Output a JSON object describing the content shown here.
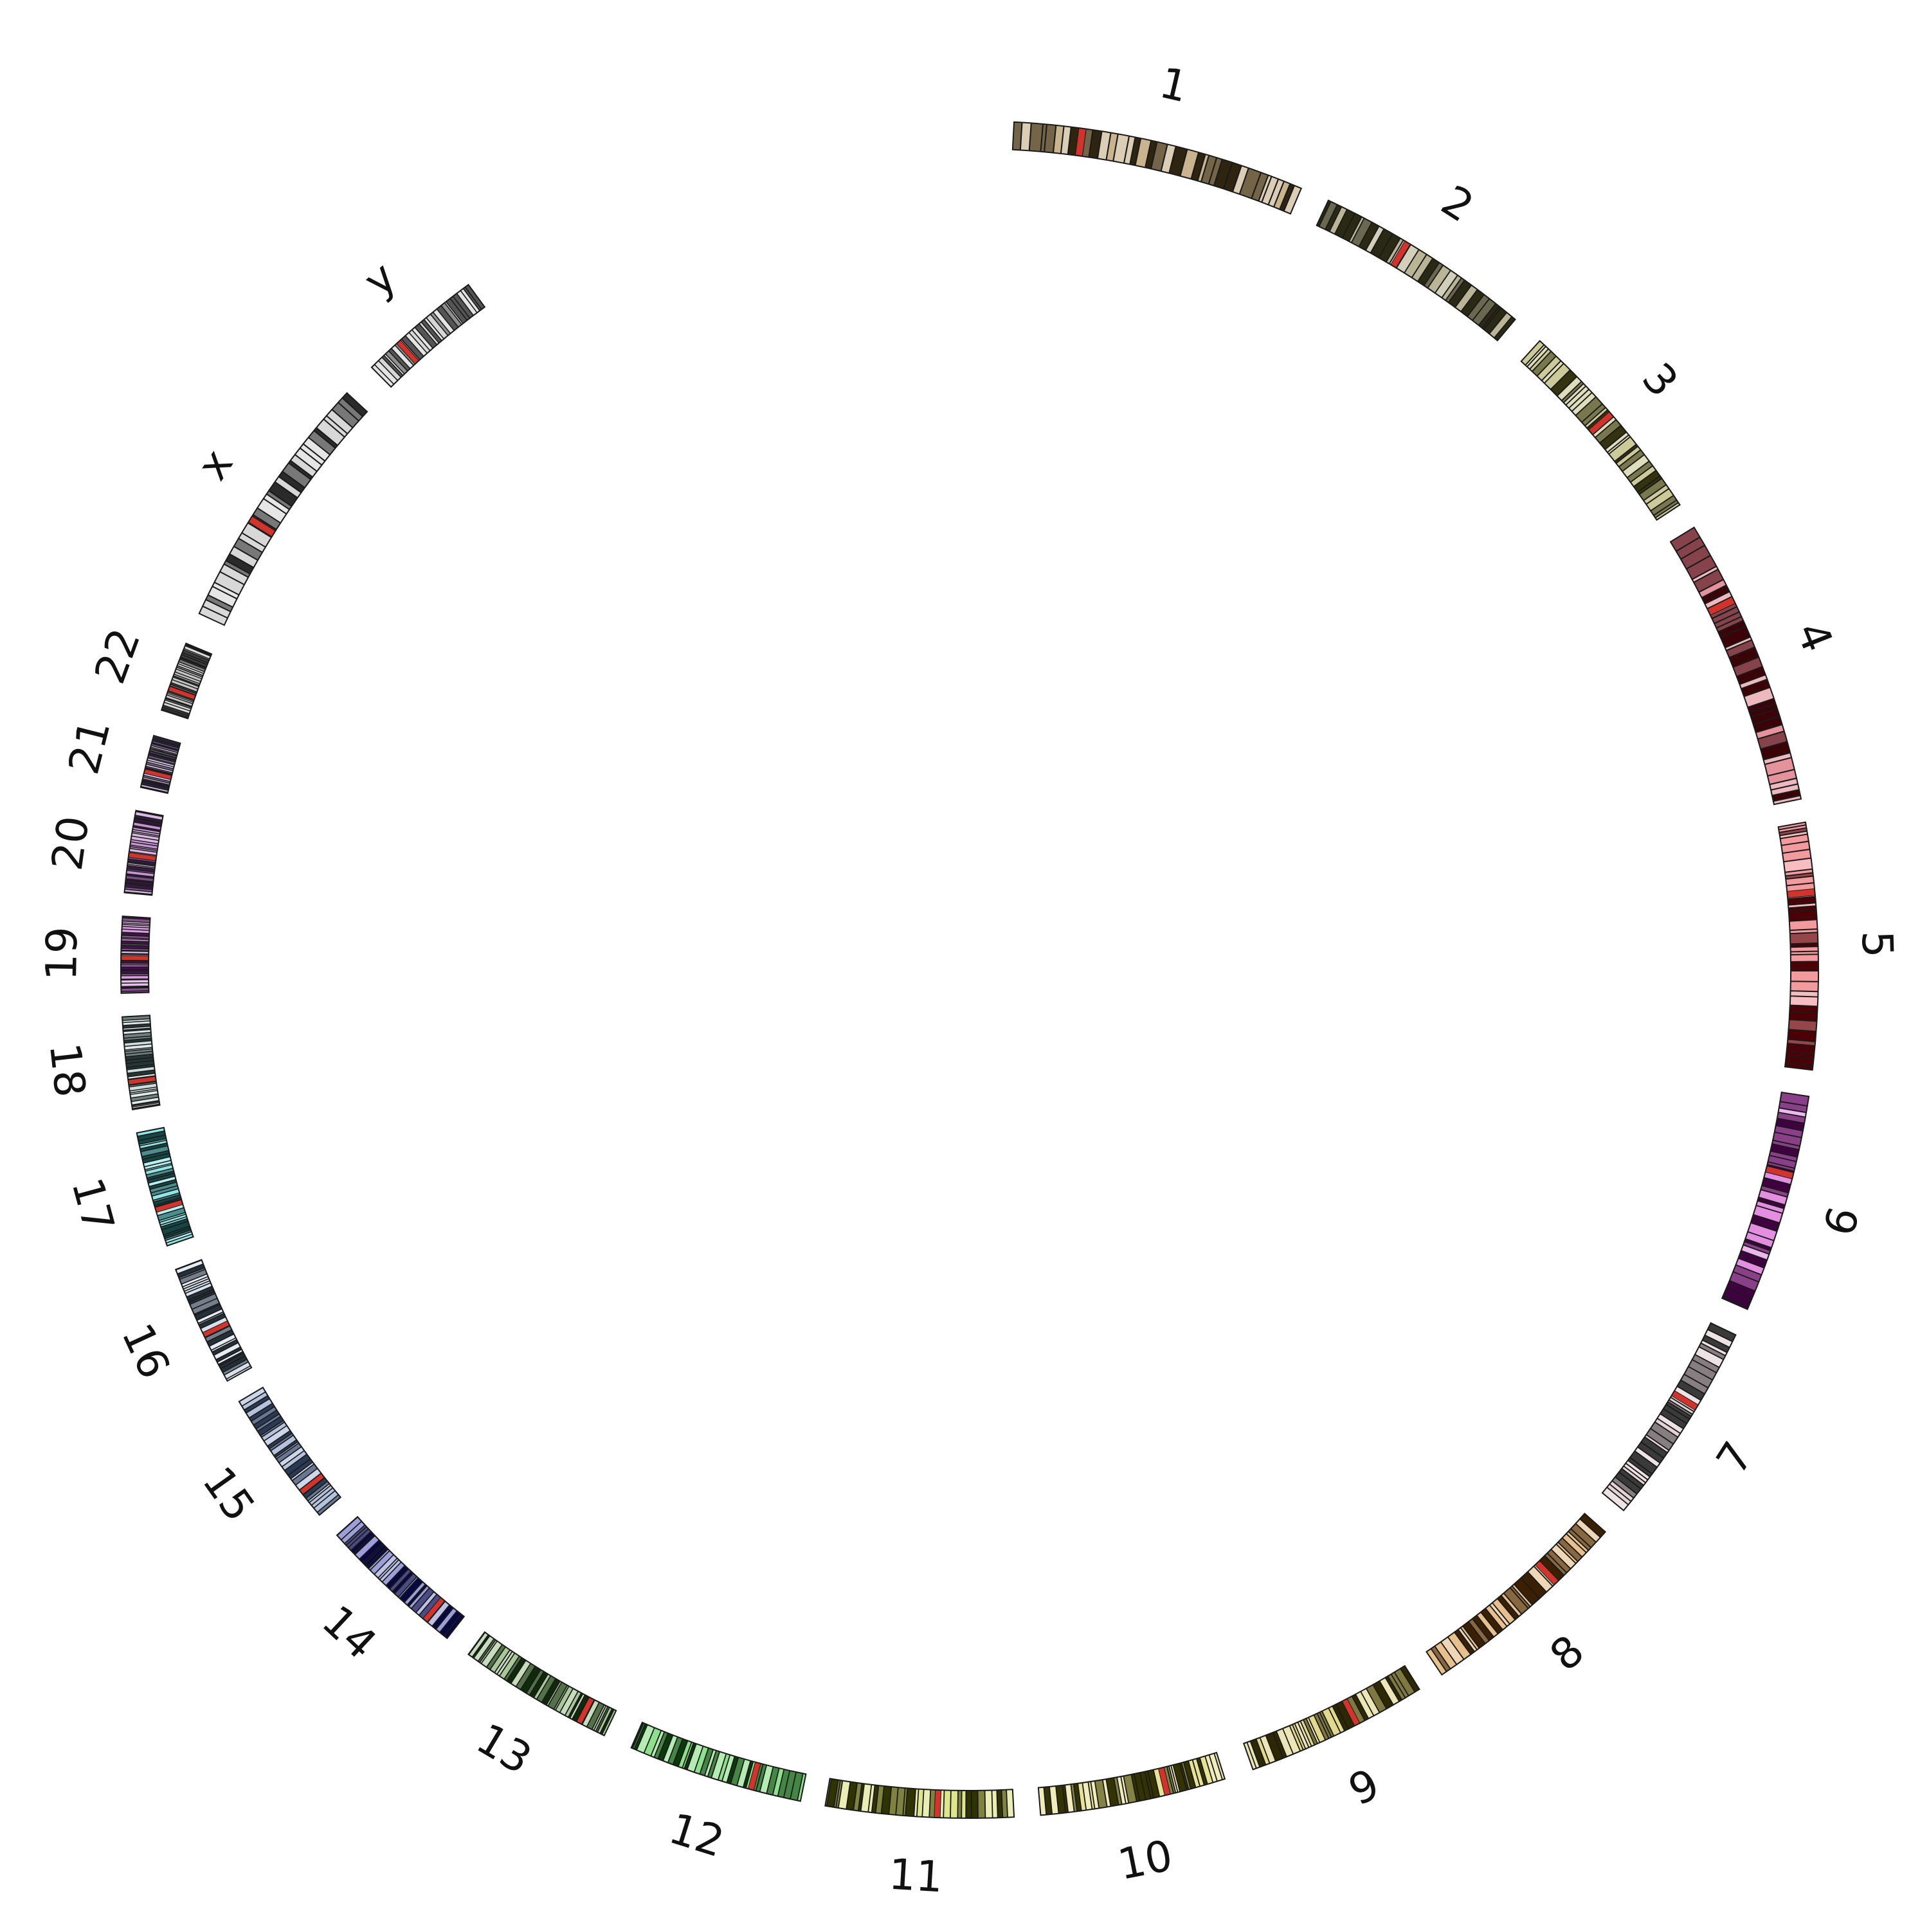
{
  "chart_data": {
    "type": "circular-ideogram",
    "outline_color": "#1a1a1a",
    "chromosomes": [
      {
        "label": "1",
        "base_color": "#c9b48f",
        "dark_color": "#2e2410",
        "band_seed": 11,
        "centromere_frac": 0.22
      },
      {
        "label": "2",
        "base_color": "#b9b596",
        "dark_color": "#2a2a14",
        "band_seed": 23,
        "centromere_frac": 0.39
      },
      {
        "label": "3",
        "base_color": "#ccca98",
        "dark_color": "#33330f",
        "band_seed": 37,
        "centromere_frac": 0.46
      },
      {
        "label": "4",
        "base_color": "#e4939c",
        "dark_color": "#3b0208",
        "band_seed": 41,
        "centromere_frac": 0.27
      },
      {
        "label": "5",
        "base_color": "#f29a9e",
        "dark_color": "#4a0004",
        "band_seed": 53,
        "centromere_frac": 0.27
      },
      {
        "label": "6",
        "base_color": "#e38ee1",
        "dark_color": "#3f0040",
        "band_seed": 67,
        "centromere_frac": 0.35
      },
      {
        "label": "7",
        "base_color": "#e3d2d6",
        "dark_color": "#3a3a3a",
        "band_seed": 71,
        "centromere_frac": 0.38
      },
      {
        "label": "8",
        "base_color": "#e7c08e",
        "dark_color": "#3a2000",
        "band_seed": 83,
        "centromere_frac": 0.31
      },
      {
        "label": "9",
        "base_color": "#e2d98f",
        "dark_color": "#2e2800",
        "band_seed": 97,
        "centromere_frac": 0.37
      },
      {
        "label": "10",
        "base_color": "#e8e297",
        "dark_color": "#333300",
        "band_seed": 101,
        "centromere_frac": 0.3
      },
      {
        "label": "11",
        "base_color": "#dfe58d",
        "dark_color": "#2e3300",
        "band_seed": 113,
        "centromere_frac": 0.39
      },
      {
        "label": "12",
        "base_color": "#8ee18c",
        "dark_color": "#0a3a0a",
        "band_seed": 127,
        "centromere_frac": 0.27
      },
      {
        "label": "13",
        "base_color": "#a9c89a",
        "dark_color": "#0e2a08",
        "band_seed": 131,
        "centromere_frac": 0.16
      },
      {
        "label": "14",
        "base_color": "#9d9fd9",
        "dark_color": "#080840",
        "band_seed": 139,
        "centromere_frac": 0.17
      },
      {
        "label": "15",
        "base_color": "#b4c2dd",
        "dark_color": "#2a3a55",
        "band_seed": 149,
        "centromere_frac": 0.19
      },
      {
        "label": "16",
        "base_color": "#d7e1ee",
        "dark_color": "#252f3a",
        "band_seed": 157,
        "centromere_frac": 0.4
      },
      {
        "label": "17",
        "base_color": "#8fe6e8",
        "dark_color": "#154545",
        "band_seed": 163,
        "centromere_frac": 0.3
      },
      {
        "label": "18",
        "base_color": "#ccdcd9",
        "dark_color": "#253535",
        "band_seed": 173,
        "centromere_frac": 0.27
      },
      {
        "label": "19",
        "base_color": "#d79ddf",
        "dark_color": "#3e1446",
        "band_seed": 181,
        "centromere_frac": 0.43
      },
      {
        "label": "20",
        "base_color": "#c593d4",
        "dark_color": "#361a40",
        "band_seed": 191,
        "centromere_frac": 0.43
      },
      {
        "label": "21",
        "base_color": "#d6bde8",
        "dark_color": "#2a2040",
        "band_seed": 197,
        "centromere_frac": 0.27
      },
      {
        "label": "22",
        "base_color": "#c5c5c5",
        "dark_color": "#3a3a3a",
        "band_seed": 211,
        "centromere_frac": 0.29
      },
      {
        "label": "x",
        "base_color": "#d8d8d8",
        "dark_color": "#2a2a2a",
        "band_seed": 223,
        "centromere_frac": 0.39
      },
      {
        "label": "y",
        "base_color": "#d6d6d6",
        "dark_color": "#555555",
        "band_seed": 227,
        "centromere_frac": 0.27
      }
    ]
  }
}
